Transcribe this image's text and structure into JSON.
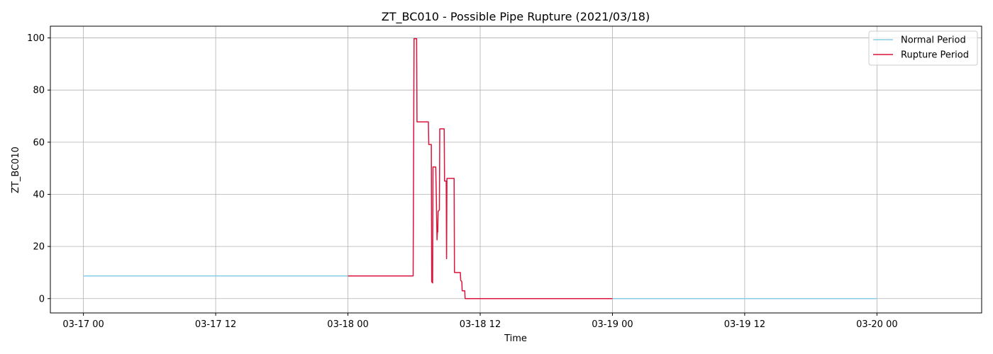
{
  "chart_data": {
    "type": "line",
    "title": "ZT_BC010 - Possible Pipe Rupture (2021/03/18)",
    "xlabel": "Time",
    "ylabel": "ZT_BC010",
    "xlim": [
      "2021-03-16T21:00",
      "2021-03-20T09:30"
    ],
    "ylim": [
      -5.5,
      104.5
    ],
    "x_ticks": [
      {
        "t": "2021-03-17T00:00",
        "label": "03-17 00"
      },
      {
        "t": "2021-03-17T12:00",
        "label": "03-17 12"
      },
      {
        "t": "2021-03-18T00:00",
        "label": "03-18 00"
      },
      {
        "t": "2021-03-18T12:00",
        "label": "03-18 12"
      },
      {
        "t": "2021-03-19T00:00",
        "label": "03-19 00"
      },
      {
        "t": "2021-03-19T12:00",
        "label": "03-19 12"
      },
      {
        "t": "2021-03-20T00:00",
        "label": "03-20 00"
      }
    ],
    "y_ticks": [
      0,
      20,
      40,
      60,
      80,
      100
    ],
    "grid": true,
    "legend_position": "top-right",
    "series": [
      {
        "name": "Normal Period",
        "color": "#87ceeb",
        "points": [
          [
            "2021-03-17T00:00",
            8.7
          ],
          [
            "2021-03-18T00:00",
            8.7
          ]
        ]
      },
      {
        "name": "Normal Period",
        "color": "#87ceeb",
        "show_in_legend": false,
        "points": [
          [
            "2021-03-19T00:00",
            0
          ],
          [
            "2021-03-20T00:00",
            0
          ]
        ]
      },
      {
        "name": "Rupture Period",
        "color": "#dc143c",
        "points": [
          [
            "2021-03-18T00:00",
            8.7
          ],
          [
            "2021-03-18T05:55",
            8.7
          ],
          [
            "2021-03-18T06:00",
            99.7
          ],
          [
            "2021-03-18T06:14",
            99.7
          ],
          [
            "2021-03-18T06:16",
            67.8
          ],
          [
            "2021-03-18T07:18",
            67.8
          ],
          [
            "2021-03-18T07:20",
            59.1
          ],
          [
            "2021-03-18T07:34",
            59.1
          ],
          [
            "2021-03-18T07:36",
            6.5
          ],
          [
            "2021-03-18T07:41",
            6.0
          ],
          [
            "2021-03-18T07:43",
            50.5
          ],
          [
            "2021-03-18T07:58",
            50.5
          ],
          [
            "2021-03-18T08:00",
            43.5
          ],
          [
            "2021-03-18T08:02",
            35.5
          ],
          [
            "2021-03-18T08:05",
            22.5
          ],
          [
            "2021-03-18T08:07",
            25.5
          ],
          [
            "2021-03-18T08:09",
            25.5
          ],
          [
            "2021-03-18T08:11",
            33.5
          ],
          [
            "2021-03-18T08:18",
            34.0
          ],
          [
            "2021-03-18T08:20",
            65.1
          ],
          [
            "2021-03-18T08:44",
            65.1
          ],
          [
            "2021-03-18T08:46",
            45.1
          ],
          [
            "2021-03-18T08:55",
            45.1
          ],
          [
            "2021-03-18T08:57",
            15.3
          ],
          [
            "2021-03-18T08:59",
            46.1
          ],
          [
            "2021-03-18T09:38",
            46.1
          ],
          [
            "2021-03-18T09:40",
            10.0
          ],
          [
            "2021-03-18T10:12",
            10.0
          ],
          [
            "2021-03-18T10:14",
            7.0
          ],
          [
            "2021-03-18T10:20",
            6.5
          ],
          [
            "2021-03-18T10:22",
            3.0
          ],
          [
            "2021-03-18T10:36",
            3.0
          ],
          [
            "2021-03-18T10:38",
            0.0
          ],
          [
            "2021-03-19T00:00",
            0.0
          ]
        ]
      }
    ]
  }
}
